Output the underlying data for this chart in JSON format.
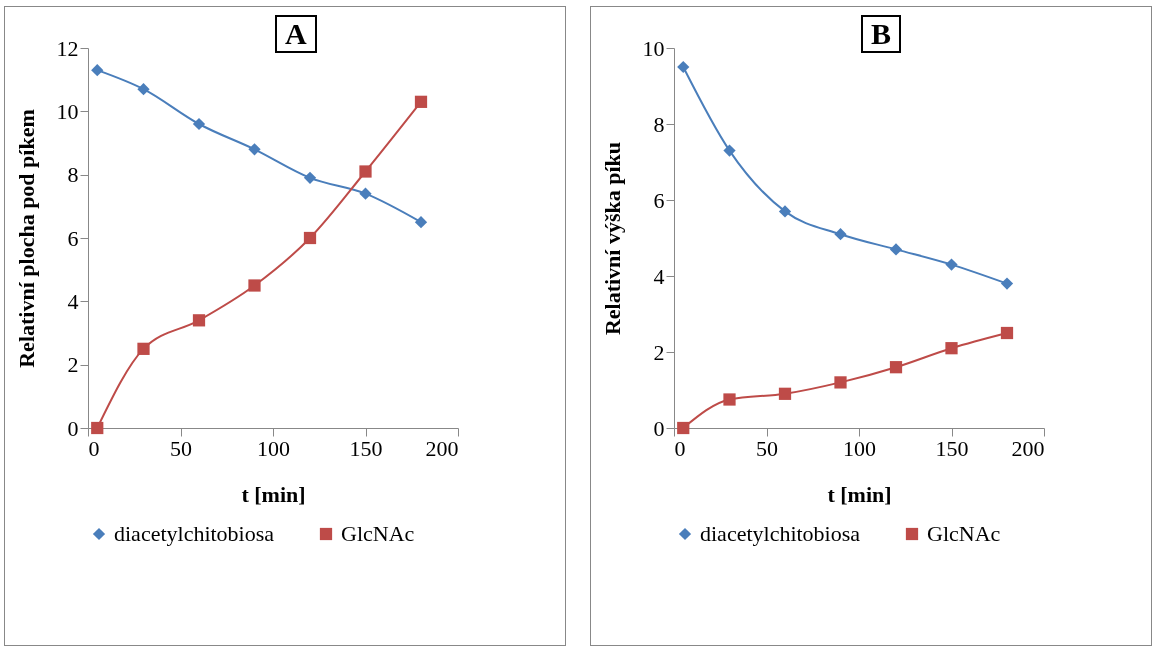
{
  "chart_data": [
    {
      "type": "line",
      "xlabel": "t [min]",
      "ylabel": "Relativní plocha pod píkem",
      "annotations": [
        "A"
      ],
      "x": [
        5,
        30,
        60,
        90,
        120,
        150,
        180
      ],
      "xlim": [
        0,
        200
      ],
      "xticks": [
        0,
        50,
        100,
        150,
        200
      ],
      "ylim": [
        0,
        12
      ],
      "yticks": [
        0,
        2,
        4,
        6,
        8,
        10,
        12
      ],
      "legend": "bottom",
      "series": [
        {
          "name": "diacetylchitobiosa",
          "color": "#4a7ebb",
          "marker": "diamond",
          "values": [
            11.3,
            10.7,
            9.6,
            8.8,
            7.9,
            7.4,
            6.5
          ]
        },
        {
          "name": "GlcNAc",
          "color": "#be4b48",
          "marker": "square",
          "values": [
            0,
            2.5,
            3.4,
            4.5,
            6.0,
            8.1,
            10.3
          ]
        }
      ]
    },
    {
      "type": "line",
      "xlabel": "t [min]",
      "ylabel": "Relativní výška píku",
      "annotations": [
        "B"
      ],
      "x": [
        5,
        30,
        60,
        90,
        120,
        150,
        180
      ],
      "xlim": [
        0,
        200
      ],
      "xticks": [
        0,
        50,
        100,
        150,
        200
      ],
      "ylim": [
        0,
        10
      ],
      "yticks": [
        0,
        2,
        4,
        6,
        8,
        10
      ],
      "legend": "bottom",
      "series": [
        {
          "name": "diacetylchitobiosa",
          "color": "#4a7ebb",
          "marker": "diamond",
          "values": [
            9.5,
            7.3,
            5.7,
            5.1,
            4.7,
            4.3,
            3.8
          ]
        },
        {
          "name": "GlcNAc",
          "color": "#be4b48",
          "marker": "square",
          "values": [
            0,
            0.75,
            0.9,
            1.2,
            1.6,
            2.1,
            2.5
          ]
        }
      ]
    }
  ]
}
